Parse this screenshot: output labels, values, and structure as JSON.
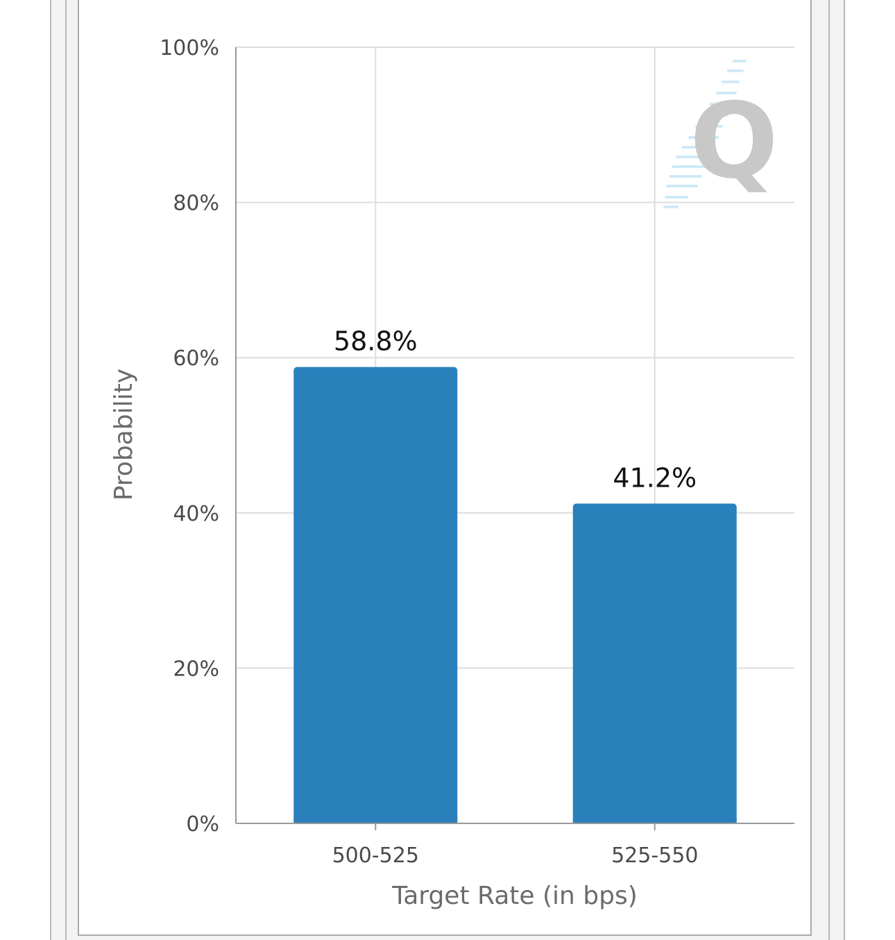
{
  "chart_data": {
    "type": "bar",
    "categories": [
      "500-525",
      "525-550"
    ],
    "values": [
      58.8,
      41.2
    ],
    "data_labels": [
      "58.8%",
      "41.2%"
    ],
    "title": "",
    "xlabel": "Target Rate (in bps)",
    "ylabel": "Probability",
    "ylim": [
      0,
      100
    ],
    "y_ticks": [
      0,
      20,
      40,
      60,
      80,
      100
    ],
    "y_tick_labels": [
      "0%",
      "20%",
      "40%",
      "60%",
      "80%",
      "100%"
    ],
    "grid": true,
    "bar_color": "#2a80bb"
  },
  "watermark": {
    "letter": "Q",
    "icon": "q-logo-watermark"
  }
}
